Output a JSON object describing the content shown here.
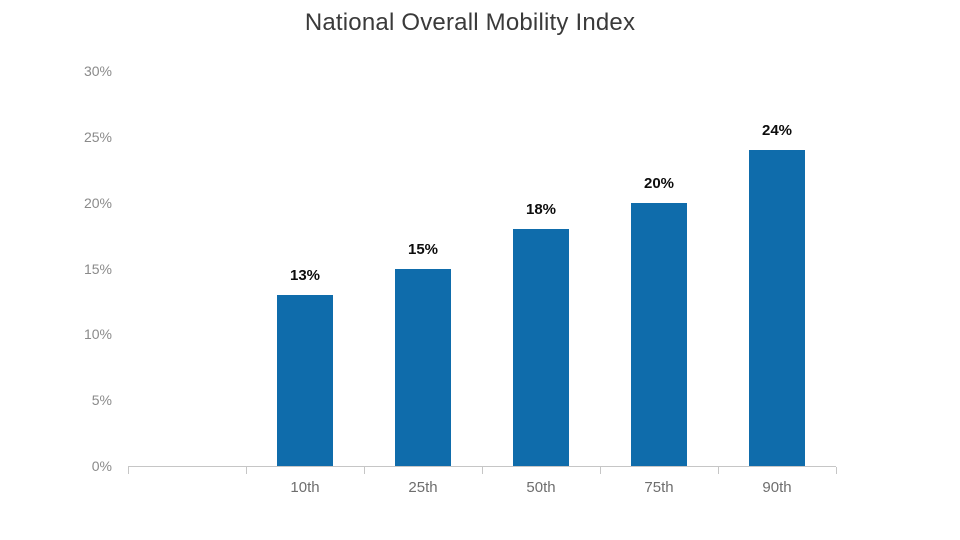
{
  "chart_data": {
    "type": "bar",
    "title": "National Overall Mobility Index",
    "categories": [
      "10th",
      "25th",
      "50th",
      "75th",
      "90th"
    ],
    "values": [
      13,
      15,
      18,
      20,
      24
    ],
    "bar_value_labels": [
      "13%",
      "15%",
      "18%",
      "20%",
      "24%"
    ],
    "y_tick_labels": [
      "0%",
      "5%",
      "10%",
      "15%",
      "20%",
      "25%",
      "30%"
    ],
    "ylim": [
      0,
      30
    ],
    "xlabel": "",
    "ylabel": "",
    "grid": false,
    "legend": null,
    "leading_empty_category_slot": true,
    "colors": {
      "bar": "#0f6cab",
      "title_text": "#3a3a3a",
      "axis_line": "#c6c6c6",
      "y_tick_text": "#8a8a8a",
      "x_tick_text": "#6e6e6e",
      "bar_label_text": "#0d0d0d"
    }
  }
}
